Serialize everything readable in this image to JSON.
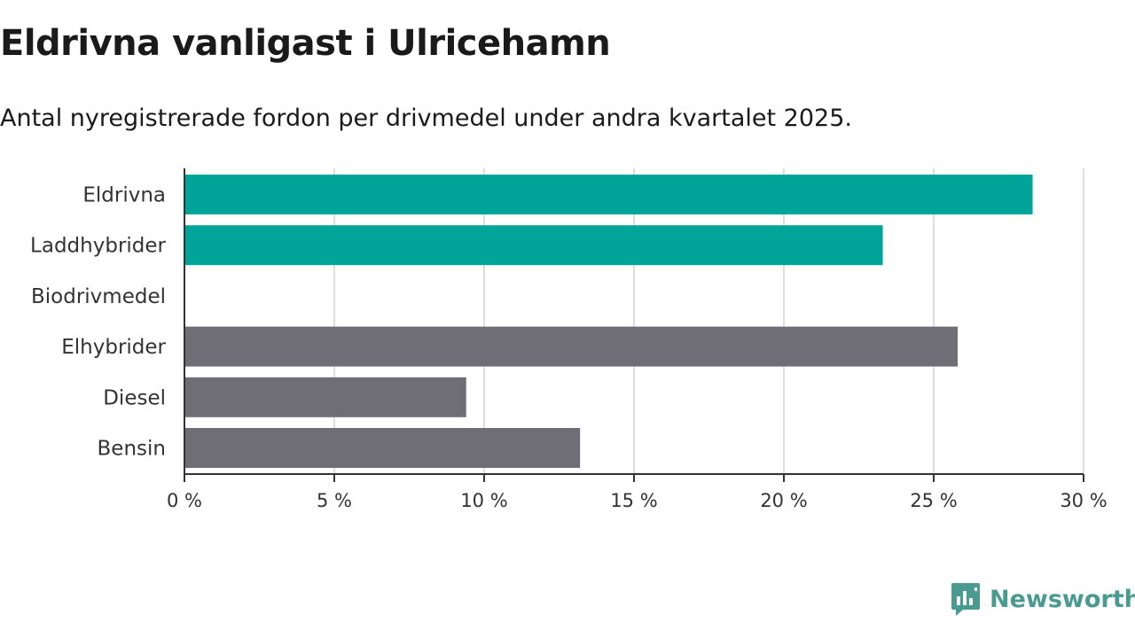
{
  "header": {
    "title": "Eldrivna vanligast i Ulricehamn",
    "subtitle": "Antal nyregistrerade fordon per drivmedel under andra kvartalet 2025."
  },
  "brand": {
    "name": "Newsworthy",
    "icon": "newsworthy-logo-icon",
    "color": "#4a9b8f"
  },
  "chart_data": {
    "type": "bar",
    "orientation": "horizontal",
    "categories": [
      "Eldrivna",
      "Laddhybrider",
      "Biodrivmedel",
      "Elhybrider",
      "Diesel",
      "Bensin"
    ],
    "values": [
      28.3,
      23.3,
      0,
      25.8,
      9.4,
      13.2
    ],
    "colors": [
      "#00a499",
      "#00a499",
      "#6f6d75",
      "#6f6d75",
      "#6f6d75",
      "#6f6d75"
    ],
    "xlim": [
      0,
      30
    ],
    "xticks": [
      0,
      5,
      10,
      15,
      20,
      25,
      30
    ],
    "tick_labels": [
      "0 %",
      "5 %",
      "10 %",
      "15 %",
      "20 %",
      "25 %",
      "30 %"
    ],
    "grid": true
  }
}
